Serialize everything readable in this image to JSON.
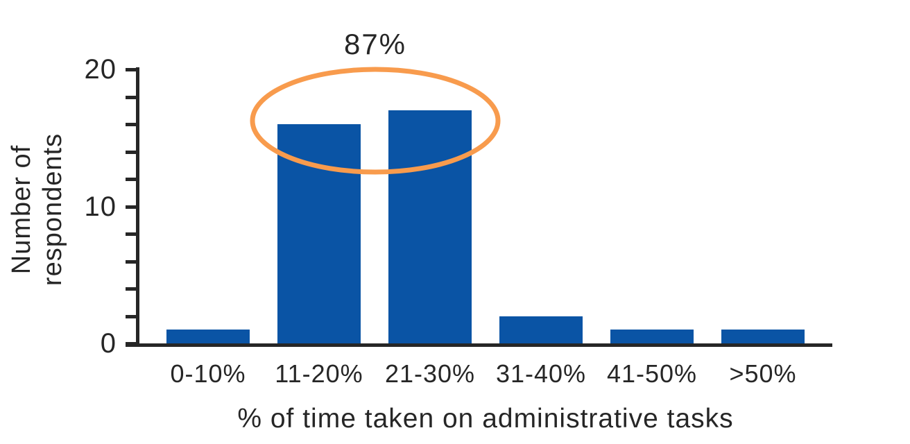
{
  "chart_data": {
    "type": "bar",
    "categories": [
      "0-10%",
      "11-20%",
      "21-30%",
      "31-40%",
      "41-50%",
      ">50%"
    ],
    "values": [
      1,
      16,
      17,
      2,
      1,
      1
    ],
    "xlabel": "% of time taken on administrative tasks",
    "ylabel_line1": "Number of",
    "ylabel_line2": "respondents",
    "ylim": [
      0,
      20
    ],
    "yticks": [
      {
        "value": 0,
        "label": "0"
      },
      {
        "value": 10,
        "label": "10"
      },
      {
        "value": 20,
        "label": "20"
      }
    ],
    "ytick_minor_step": 2,
    "grid": "off",
    "legend": "none",
    "annotation": {
      "label": "87%",
      "highlighted_categories": [
        "11-20%",
        "21-30%"
      ],
      "shape": "ellipse"
    },
    "colors": {
      "bar": "#0A54A5",
      "ellipse": "#F89B4D",
      "axis": "#262626",
      "text": "#262626"
    }
  }
}
